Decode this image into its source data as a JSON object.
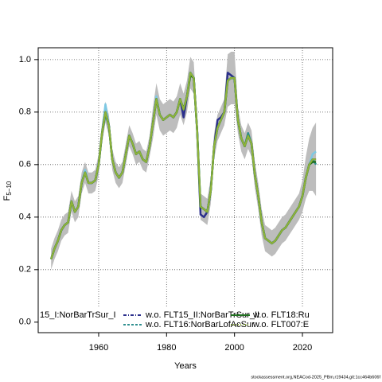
{
  "chart_data": {
    "type": "line",
    "xlabel": "Years",
    "ylabel": "F",
    "ylabel_sub": "5−10",
    "footer": "stockassessment.org,NEACod-2025_PBm,r19434,git:1cc464b606f",
    "xlim": [
      1942.2,
      2028.9
    ],
    "ylim": [
      -0.04,
      1.045
    ],
    "xticks": [
      1960,
      1980,
      2000,
      2020
    ],
    "yticks": [
      {
        "value": 0,
        "label": "0.0"
      },
      0.2,
      0.4,
      0.6,
      0.8,
      {
        "value": 1,
        "label": "1.0"
      }
    ],
    "grid": true,
    "legend": "bottom",
    "x": [
      1946,
      1947,
      1948,
      1949,
      1950,
      1951,
      1952,
      1953,
      1954,
      1955,
      1956,
      1957,
      1958,
      1959,
      1960,
      1961,
      1962,
      1963,
      1964,
      1965,
      1966,
      1967,
      1968,
      1969,
      1970,
      1971,
      1972,
      1973,
      1974,
      1975,
      1976,
      1977,
      1978,
      1979,
      1980,
      1981,
      1982,
      1983,
      1984,
      1985,
      1986,
      1987,
      1988,
      1989,
      1990,
      1991,
      1992,
      1993,
      1994,
      1995,
      1996,
      1997,
      1998,
      1999,
      2000,
      2001,
      2002,
      2003,
      2004,
      2005,
      2006,
      2007,
      2008,
      2009,
      2010,
      2011,
      2012,
      2013,
      2014,
      2015,
      2016,
      2017,
      2018,
      2019,
      2020,
      2021,
      2022,
      2023,
      2024
    ],
    "band": {
      "color": "#bdbdbd",
      "upper": [
        0.28,
        0.32,
        0.35,
        0.39,
        0.41,
        0.42,
        0.5,
        0.46,
        0.48,
        0.57,
        0.61,
        0.57,
        0.57,
        0.58,
        0.64,
        0.76,
        0.84,
        0.79,
        0.66,
        0.61,
        0.59,
        0.61,
        0.68,
        0.75,
        0.72,
        0.68,
        0.69,
        0.66,
        0.65,
        0.71,
        0.82,
        0.91,
        0.85,
        0.83,
        0.84,
        0.85,
        0.84,
        0.86,
        0.91,
        0.87,
        0.92,
        1.01,
        0.99,
        0.78,
        0.49,
        0.48,
        0.47,
        0.55,
        0.72,
        0.79,
        0.82,
        0.85,
        1.02,
        1.03,
        1.03,
        0.82,
        0.75,
        0.72,
        0.76,
        0.73,
        0.61,
        0.53,
        0.43,
        0.37,
        0.36,
        0.35,
        0.36,
        0.38,
        0.4,
        0.41,
        0.43,
        0.45,
        0.47,
        0.49,
        0.54,
        0.63,
        0.7,
        0.74,
        0.76
      ],
      "lower": [
        0.2,
        0.24,
        0.27,
        0.31,
        0.33,
        0.34,
        0.42,
        0.38,
        0.4,
        0.49,
        0.53,
        0.49,
        0.49,
        0.5,
        0.56,
        0.68,
        0.76,
        0.71,
        0.58,
        0.53,
        0.51,
        0.53,
        0.6,
        0.67,
        0.64,
        0.6,
        0.61,
        0.58,
        0.57,
        0.63,
        0.7,
        0.79,
        0.73,
        0.71,
        0.72,
        0.73,
        0.72,
        0.74,
        0.79,
        0.75,
        0.8,
        0.89,
        0.87,
        0.68,
        0.39,
        0.38,
        0.37,
        0.45,
        0.62,
        0.69,
        0.72,
        0.75,
        0.82,
        0.83,
        0.83,
        0.72,
        0.65,
        0.62,
        0.66,
        0.63,
        0.51,
        0.43,
        0.33,
        0.27,
        0.26,
        0.25,
        0.26,
        0.28,
        0.3,
        0.31,
        0.33,
        0.35,
        0.37,
        0.39,
        0.42,
        0.47,
        0.5,
        0.5,
        0.48
      ]
    },
    "series": [
      {
        "name": "15_I:NorBarTrSur_I",
        "color": "#7ec8e3",
        "dash": "none",
        "values": [
          0.24,
          0.28,
          0.31,
          0.35,
          0.37,
          0.38,
          0.46,
          0.42,
          0.44,
          0.53,
          0.58,
          0.53,
          0.53,
          0.54,
          0.6,
          0.72,
          0.83,
          0.75,
          0.62,
          0.57,
          0.55,
          0.57,
          0.64,
          0.71,
          0.68,
          0.64,
          0.65,
          0.62,
          0.61,
          0.67,
          0.76,
          0.86,
          0.79,
          0.77,
          0.78,
          0.79,
          0.78,
          0.8,
          0.85,
          0.81,
          0.86,
          0.95,
          0.93,
          0.73,
          0.44,
          0.43,
          0.42,
          0.5,
          0.67,
          0.74,
          0.77,
          0.8,
          0.92,
          0.93,
          0.93,
          0.77,
          0.7,
          0.67,
          0.71,
          0.68,
          0.56,
          0.48,
          0.38,
          0.32,
          0.31,
          0.3,
          0.31,
          0.33,
          0.35,
          0.36,
          0.38,
          0.4,
          0.42,
          0.44,
          0.48,
          0.55,
          0.6,
          0.64,
          0.65
        ]
      },
      {
        "name": "w.o. FLT15_II:NorBarTrSur_II",
        "color": "#2b2f8c",
        "dash": "4 2 1 2",
        "values": [
          0.24,
          0.28,
          0.31,
          0.35,
          0.37,
          0.38,
          0.46,
          0.42,
          0.44,
          0.53,
          0.57,
          0.53,
          0.53,
          0.54,
          0.6,
          0.72,
          0.8,
          0.75,
          0.62,
          0.57,
          0.55,
          0.57,
          0.64,
          0.71,
          0.68,
          0.64,
          0.65,
          0.62,
          0.61,
          0.67,
          0.76,
          0.85,
          0.79,
          0.77,
          0.78,
          0.79,
          0.78,
          0.8,
          0.85,
          0.78,
          0.86,
          0.95,
          0.93,
          0.73,
          0.41,
          0.4,
          0.42,
          0.5,
          0.67,
          0.77,
          0.78,
          0.8,
          0.95,
          0.94,
          0.93,
          0.77,
          0.7,
          0.67,
          0.71,
          0.68,
          0.56,
          0.48,
          0.38,
          0.32,
          0.31,
          0.3,
          0.31,
          0.33,
          0.35,
          0.36,
          0.38,
          0.4,
          0.42,
          0.44,
          0.48,
          0.55,
          0.6,
          0.62,
          0.62
        ]
      },
      {
        "name": "w.o. FLT16:NorBarLofAcSur",
        "color": "#2f8f8f",
        "dash": "3 2",
        "values": [
          0.24,
          0.28,
          0.31,
          0.35,
          0.37,
          0.38,
          0.46,
          0.42,
          0.44,
          0.53,
          0.57,
          0.53,
          0.53,
          0.54,
          0.6,
          0.72,
          0.79,
          0.75,
          0.62,
          0.57,
          0.55,
          0.57,
          0.64,
          0.71,
          0.68,
          0.64,
          0.65,
          0.62,
          0.61,
          0.67,
          0.76,
          0.85,
          0.79,
          0.77,
          0.78,
          0.79,
          0.78,
          0.8,
          0.85,
          0.81,
          0.86,
          0.95,
          0.93,
          0.73,
          0.44,
          0.43,
          0.42,
          0.5,
          0.67,
          0.74,
          0.77,
          0.8,
          0.92,
          0.93,
          0.93,
          0.77,
          0.7,
          0.67,
          0.72,
          0.68,
          0.56,
          0.48,
          0.38,
          0.32,
          0.31,
          0.3,
          0.31,
          0.33,
          0.35,
          0.36,
          0.38,
          0.4,
          0.42,
          0.44,
          0.48,
          0.55,
          0.6,
          0.62,
          0.6
        ]
      },
      {
        "name": "w.o. FLT18:Ru",
        "color": "#1f6f1f",
        "dash": "none",
        "values": [
          0.24,
          0.28,
          0.31,
          0.35,
          0.37,
          0.38,
          0.46,
          0.42,
          0.44,
          0.53,
          0.57,
          0.53,
          0.53,
          0.54,
          0.6,
          0.72,
          0.8,
          0.75,
          0.62,
          0.57,
          0.55,
          0.57,
          0.64,
          0.71,
          0.68,
          0.64,
          0.65,
          0.62,
          0.61,
          0.67,
          0.76,
          0.85,
          0.79,
          0.77,
          0.78,
          0.79,
          0.78,
          0.8,
          0.85,
          0.81,
          0.86,
          0.94,
          0.93,
          0.73,
          0.44,
          0.43,
          0.42,
          0.5,
          0.67,
          0.74,
          0.77,
          0.8,
          0.92,
          0.93,
          0.93,
          0.77,
          0.7,
          0.67,
          0.71,
          0.68,
          0.56,
          0.48,
          0.38,
          0.32,
          0.31,
          0.3,
          0.31,
          0.33,
          0.35,
          0.36,
          0.38,
          0.4,
          0.42,
          0.44,
          0.48,
          0.55,
          0.6,
          0.61,
          0.61
        ]
      },
      {
        "name": "w.o. FLT007:E",
        "color": "#8fb23a",
        "dash": "1 2",
        "values": [
          0.24,
          0.28,
          0.31,
          0.35,
          0.37,
          0.38,
          0.46,
          0.42,
          0.44,
          0.53,
          0.57,
          0.53,
          0.53,
          0.54,
          0.6,
          0.72,
          0.8,
          0.75,
          0.62,
          0.57,
          0.55,
          0.57,
          0.64,
          0.71,
          0.68,
          0.64,
          0.65,
          0.62,
          0.61,
          0.67,
          0.76,
          0.85,
          0.79,
          0.77,
          0.78,
          0.79,
          0.78,
          0.8,
          0.85,
          0.81,
          0.86,
          0.95,
          0.93,
          0.73,
          0.44,
          0.43,
          0.42,
          0.5,
          0.67,
          0.74,
          0.77,
          0.8,
          0.92,
          0.93,
          0.93,
          0.77,
          0.7,
          0.67,
          0.71,
          0.68,
          0.56,
          0.48,
          0.38,
          0.32,
          0.31,
          0.3,
          0.31,
          0.33,
          0.35,
          0.36,
          0.38,
          0.4,
          0.42,
          0.44,
          0.48,
          0.55,
          0.6,
          0.62,
          0.62
        ]
      }
    ]
  }
}
